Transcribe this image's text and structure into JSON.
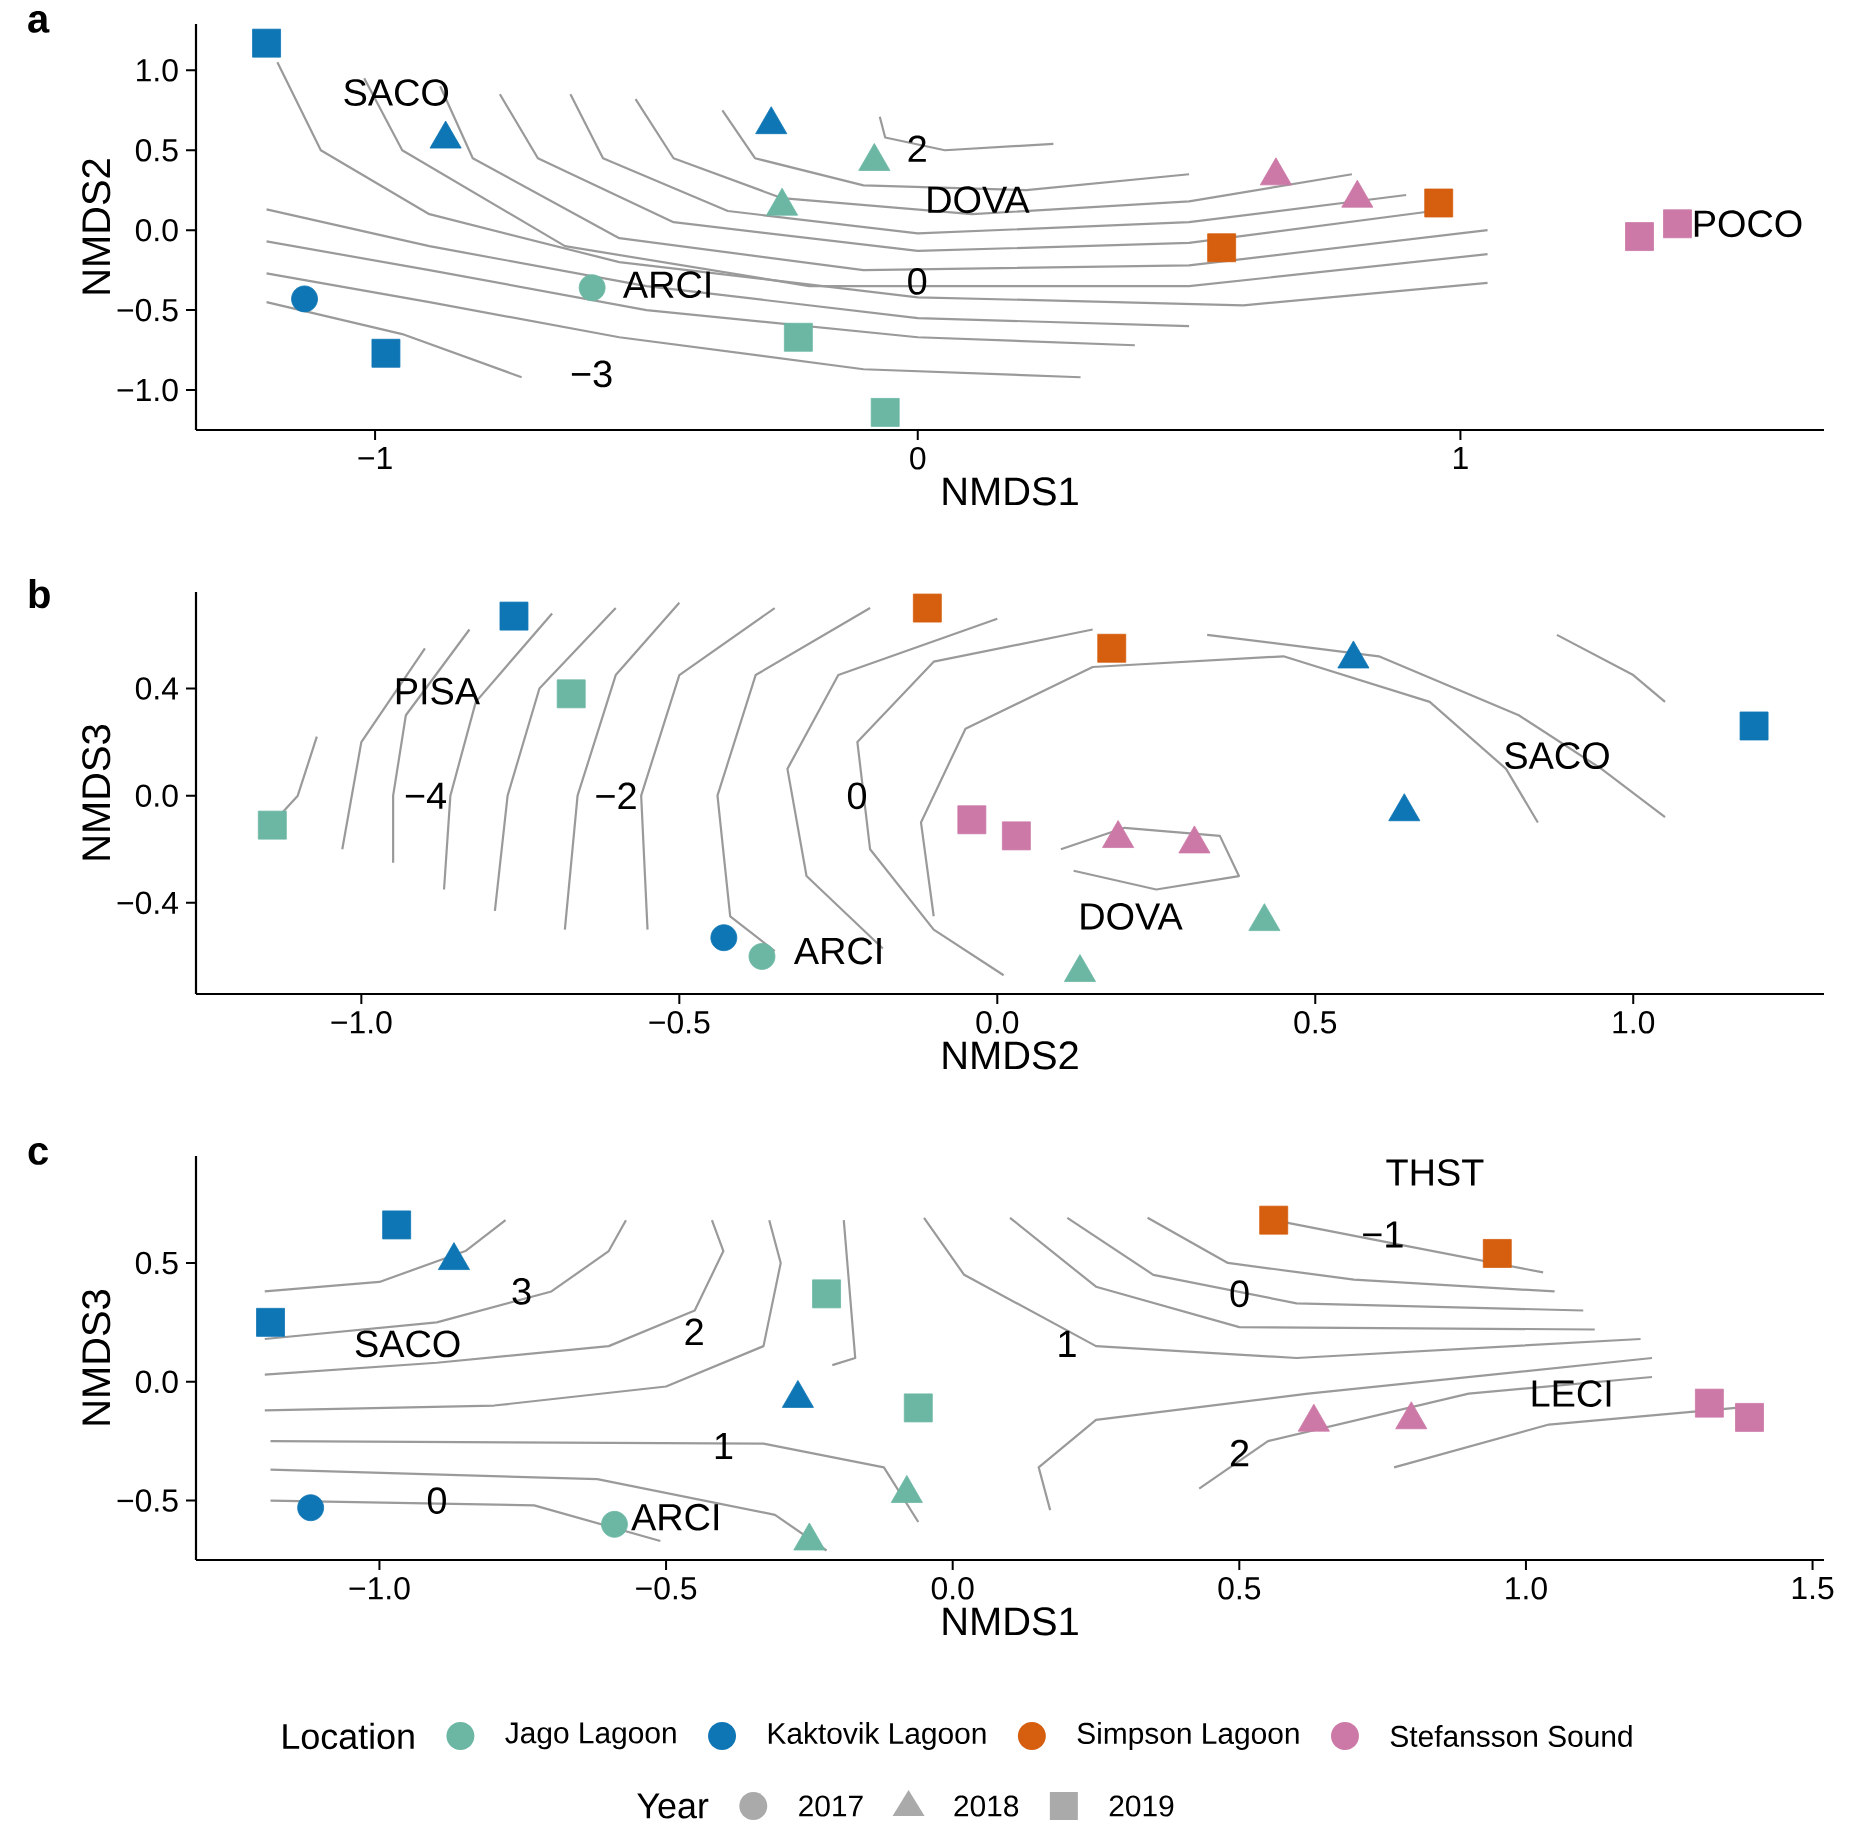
{
  "chart_data": [
    {
      "type": "scatter",
      "title": "a",
      "xlabel": "NMDS1",
      "ylabel": "NMDS2",
      "xlim": [
        -1.33,
        1.67
      ],
      "ylim": [
        -1.25,
        1.29
      ],
      "xticks": [
        {
          "value": -1,
          "label": "−1"
        },
        {
          "value": 0,
          "label": "0"
        },
        {
          "value": 1,
          "label": "1"
        }
      ],
      "yticks": [
        {
          "value": -1,
          "label": "−1.0"
        },
        {
          "value": -0.5,
          "label": "−0.5"
        },
        {
          "value": 0,
          "label": "0.0"
        },
        {
          "value": 0.5,
          "label": "0.5"
        },
        {
          "value": 1,
          "label": "1.0"
        }
      ],
      "annotations": [
        "SACO",
        "DOVA",
        "ARCI",
        "POCO",
        "2",
        "0",
        "−3"
      ],
      "series": [
        {
          "type": "line",
          "color": "#9a9a9a",
          "x": [
            -0.07,
            -0.06,
            0.05,
            0.25
          ],
          "values": [
            0.71,
            0.58,
            0.5,
            0.54
          ]
        },
        {
          "type": "line",
          "color": "#9a9a9a",
          "x": [
            -0.36,
            -0.3,
            -0.1,
            0.2,
            0.5
          ],
          "values": [
            0.75,
            0.45,
            0.28,
            0.25,
            0.35
          ]
        },
        {
          "type": "line",
          "color": "#9a9a9a",
          "x": [
            -0.52,
            -0.45,
            -0.25,
            0.1,
            0.5,
            0.8
          ],
          "values": [
            0.82,
            0.45,
            0.2,
            0.1,
            0.18,
            0.35
          ]
        },
        {
          "type": "line",
          "color": "#9a9a9a",
          "x": [
            -0.64,
            -0.58,
            -0.35,
            0.0,
            0.5,
            0.9
          ],
          "values": [
            0.85,
            0.45,
            0.12,
            -0.02,
            0.05,
            0.22
          ]
        },
        {
          "type": "line",
          "color": "#9a9a9a",
          "x": [
            -0.77,
            -0.7,
            -0.45,
            0.0,
            0.5,
            0.95
          ],
          "values": [
            0.85,
            0.45,
            0.05,
            -0.13,
            -0.08,
            0.12
          ]
        },
        {
          "type": "line",
          "color": "#9a9a9a",
          "x": [
            -0.88,
            -0.82,
            -0.55,
            -0.1,
            0.5,
            1.05
          ],
          "values": [
            0.9,
            0.45,
            -0.05,
            -0.25,
            -0.22,
            0.0
          ]
        },
        {
          "type": "line",
          "color": "#9a9a9a",
          "x": [
            -1.02,
            -0.95,
            -0.65,
            -0.2,
            0.5,
            1.05
          ],
          "values": [
            0.95,
            0.5,
            -0.1,
            -0.35,
            -0.35,
            -0.15
          ]
        },
        {
          "type": "line",
          "color": "#9a9a9a",
          "x": [
            -1.18,
            -1.1,
            -0.9,
            -0.55,
            0.0,
            0.6,
            1.05
          ],
          "values": [
            1.05,
            0.5,
            0.1,
            -0.2,
            -0.42,
            -0.47,
            -0.33
          ]
        },
        {
          "type": "line",
          "color": "#9a9a9a",
          "x": [
            -1.2,
            -0.9,
            -0.5,
            0.0,
            0.5
          ],
          "values": [
            0.13,
            -0.1,
            -0.35,
            -0.55,
            -0.6
          ]
        },
        {
          "type": "line",
          "color": "#9a9a9a",
          "x": [
            -1.2,
            -0.9,
            -0.5,
            0.0,
            0.4
          ],
          "values": [
            -0.07,
            -0.25,
            -0.5,
            -0.67,
            -0.72
          ]
        },
        {
          "type": "line",
          "color": "#9a9a9a",
          "x": [
            -1.2,
            -0.9,
            -0.55,
            -0.1,
            0.3
          ],
          "values": [
            -0.27,
            -0.45,
            -0.67,
            -0.87,
            -0.92
          ]
        },
        {
          "type": "line",
          "color": "#9a9a9a",
          "x": [
            -1.2,
            -0.95,
            -0.73
          ],
          "values": [
            -0.45,
            -0.65,
            -0.92
          ]
        },
        {
          "color": "#6cb7a4",
          "marker": "circle",
          "x": [
            -0.6
          ],
          "values": [
            -0.36
          ]
        },
        {
          "color": "#6cb7a4",
          "marker": "triangle",
          "x": [
            -0.08,
            -0.25
          ],
          "values": [
            0.43,
            0.15
          ]
        },
        {
          "color": "#6cb7a4",
          "marker": "square",
          "x": [
            -0.22,
            -0.06
          ],
          "values": [
            -0.67,
            -1.14
          ]
        },
        {
          "color": "#0f76b5",
          "marker": "circle",
          "x": [
            -1.13
          ],
          "values": [
            -0.43
          ]
        },
        {
          "color": "#0f76b5",
          "marker": "triangle",
          "x": [
            -0.87,
            -0.27
          ],
          "values": [
            0.57,
            0.66
          ]
        },
        {
          "color": "#0f76b5",
          "marker": "square",
          "x": [
            -1.2,
            -0.98
          ],
          "values": [
            1.17,
            -0.77
          ]
        },
        {
          "color": "#d55e0f",
          "marker": "square",
          "x": [
            0.56,
            0.96
          ],
          "values": [
            -0.11,
            0.17
          ]
        },
        {
          "color": "#cc79a7",
          "marker": "triangle",
          "x": [
            0.66,
            0.81
          ],
          "values": [
            0.34,
            0.2
          ]
        },
        {
          "color": "#cc79a7",
          "marker": "square",
          "x": [
            1.33,
            1.4
          ],
          "values": [
            -0.04,
            0.04
          ]
        }
      ]
    },
    {
      "type": "scatter",
      "title": "b",
      "xlabel": "NMDS2",
      "ylabel": "NMDS3",
      "xlim": [
        -1.26,
        1.3
      ],
      "ylim": [
        -0.74,
        0.76
      ],
      "xticks": [
        {
          "value": -1,
          "label": "−1.0"
        },
        {
          "value": -0.5,
          "label": "−0.5"
        },
        {
          "value": 0,
          "label": "0.0"
        },
        {
          "value": 0.5,
          "label": "0.5"
        },
        {
          "value": 1,
          "label": "1.0"
        }
      ],
      "yticks": [
        {
          "value": -0.4,
          "label": "−0.4"
        },
        {
          "value": 0,
          "label": "0.0"
        },
        {
          "value": 0.4,
          "label": "0.4"
        }
      ],
      "annotations": [
        "PISA",
        "SACO",
        "DOVA",
        "ARCI",
        "−4",
        "−2",
        "0"
      ],
      "series": [
        {
          "type": "line",
          "color": "#9a9a9a",
          "x": [
            -1.07,
            -1.1,
            -1.15
          ],
          "values": [
            0.22,
            0.0,
            -0.13
          ]
        },
        {
          "type": "line",
          "color": "#9a9a9a",
          "x": [
            -0.9,
            -1.0,
            -1.03
          ],
          "values": [
            0.55,
            0.2,
            -0.2
          ]
        },
        {
          "type": "line",
          "color": "#9a9a9a",
          "x": [
            -0.83,
            -0.93,
            -0.95,
            -0.95
          ],
          "values": [
            0.62,
            0.3,
            0.0,
            -0.25
          ]
        },
        {
          "type": "line",
          "color": "#9a9a9a",
          "x": [
            -0.7,
            -0.82,
            -0.86,
            -0.87
          ],
          "values": [
            0.68,
            0.35,
            0.0,
            -0.35
          ]
        },
        {
          "type": "line",
          "color": "#9a9a9a",
          "x": [
            -0.6,
            -0.72,
            -0.77,
            -0.79
          ],
          "values": [
            0.7,
            0.4,
            0.0,
            -0.43
          ]
        },
        {
          "type": "line",
          "color": "#9a9a9a",
          "x": [
            -0.5,
            -0.6,
            -0.66,
            -0.68
          ],
          "values": [
            0.72,
            0.45,
            0.0,
            -0.5
          ]
        },
        {
          "type": "line",
          "color": "#9a9a9a",
          "x": [
            -0.35,
            -0.5,
            -0.56,
            -0.55
          ],
          "values": [
            0.7,
            0.45,
            0.0,
            -0.5
          ]
        },
        {
          "type": "line",
          "color": "#9a9a9a",
          "x": [
            -0.2,
            -0.38,
            -0.44,
            -0.42,
            -0.35
          ],
          "values": [
            0.7,
            0.45,
            0.0,
            -0.45,
            -0.58
          ]
        },
        {
          "type": "line",
          "color": "#9a9a9a",
          "x": [
            0.0,
            -0.25,
            -0.33,
            -0.3,
            -0.18
          ],
          "values": [
            0.66,
            0.45,
            0.1,
            -0.3,
            -0.57
          ]
        },
        {
          "type": "line",
          "color": "#9a9a9a",
          "x": [
            0.15,
            -0.1,
            -0.22,
            -0.2,
            -0.1,
            0.01
          ],
          "values": [
            0.62,
            0.5,
            0.2,
            -0.2,
            -0.5,
            -0.67
          ]
        },
        {
          "type": "line",
          "color": "#9a9a9a",
          "x": [
            -0.1,
            -0.12,
            -0.05,
            0.15,
            0.45,
            0.68,
            0.8,
            0.85
          ],
          "values": [
            -0.45,
            -0.1,
            0.25,
            0.48,
            0.52,
            0.35,
            0.1,
            -0.1
          ]
        },
        {
          "type": "line",
          "color": "#9a9a9a",
          "x": [
            0.33,
            0.6,
            0.82,
            0.95,
            1.05
          ],
          "values": [
            0.6,
            0.52,
            0.3,
            0.1,
            -0.08
          ]
        },
        {
          "type": "line",
          "color": "#9a9a9a",
          "x": [
            0.88,
            1.0,
            1.05
          ],
          "values": [
            0.6,
            0.45,
            0.35
          ]
        },
        {
          "type": "line",
          "color": "#9a9a9a",
          "x": [
            0.1,
            0.2,
            0.35,
            0.38,
            0.25,
            0.12
          ],
          "values": [
            -0.2,
            -0.12,
            -0.15,
            -0.3,
            -0.35,
            -0.28
          ]
        },
        {
          "color": "#6cb7a4",
          "marker": "circle",
          "x": [
            -0.37
          ],
          "values": [
            -0.6
          ]
        },
        {
          "color": "#6cb7a4",
          "marker": "triangle",
          "x": [
            0.42,
            0.13
          ],
          "values": [
            -0.47,
            -0.66
          ]
        },
        {
          "color": "#6cb7a4",
          "marker": "square",
          "x": [
            -0.67,
            -1.14
          ],
          "values": [
            0.38,
            -0.11
          ]
        },
        {
          "color": "#0f76b5",
          "marker": "circle",
          "x": [
            -0.43
          ],
          "values": [
            -0.53
          ]
        },
        {
          "color": "#0f76b5",
          "marker": "triangle",
          "x": [
            0.56,
            0.64
          ],
          "values": [
            0.51,
            -0.06
          ]
        },
        {
          "color": "#0f76b5",
          "marker": "square",
          "x": [
            -0.76,
            1.19
          ],
          "values": [
            0.67,
            0.26
          ]
        },
        {
          "color": "#d55e0f",
          "marker": "square",
          "x": [
            -0.11,
            0.18
          ],
          "values": [
            0.7,
            0.55
          ]
        },
        {
          "color": "#cc79a7",
          "marker": "triangle",
          "x": [
            0.19,
            0.31
          ],
          "values": [
            -0.16,
            -0.18
          ]
        },
        {
          "color": "#cc79a7",
          "marker": "square",
          "x": [
            -0.04,
            0.03
          ],
          "values": [
            -0.09,
            -0.15
          ]
        }
      ]
    },
    {
      "type": "scatter",
      "title": "c",
      "xlabel": "NMDS1",
      "ylabel": "NMDS3",
      "xlim": [
        -1.32,
        1.52
      ],
      "ylim": [
        -0.75,
        0.95
      ],
      "xticks": [
        {
          "value": -1,
          "label": "−1.0"
        },
        {
          "value": -0.5,
          "label": "−0.5"
        },
        {
          "value": 0,
          "label": "0.0"
        },
        {
          "value": 0.5,
          "label": "0.5"
        },
        {
          "value": 1,
          "label": "1.0"
        },
        {
          "value": 1.5,
          "label": "1.5"
        }
      ],
      "yticks": [
        {
          "value": -0.5,
          "label": "−0.5"
        },
        {
          "value": 0,
          "label": "0.0"
        },
        {
          "value": 0.5,
          "label": "0.5"
        }
      ],
      "legend": "bottom",
      "legend_title": "Location",
      "annotations": [
        "THST",
        "SACO",
        "LECI",
        "ARCI",
        "3",
        "2",
        "1",
        "1",
        "0",
        "0",
        "−1",
        "2",
        "Year"
      ],
      "series": [
        {
          "type": "line",
          "color": "#9a9a9a",
          "x": [
            -1.2,
            -1.0,
            -0.85,
            -0.78
          ],
          "values": [
            0.38,
            0.42,
            0.55,
            0.68
          ]
        },
        {
          "type": "line",
          "color": "#9a9a9a",
          "x": [
            -1.2,
            -0.9,
            -0.7,
            -0.6,
            -0.57
          ],
          "values": [
            0.18,
            0.25,
            0.38,
            0.55,
            0.68
          ]
        },
        {
          "type": "line",
          "color": "#9a9a9a",
          "x": [
            -1.2,
            -0.9,
            -0.6,
            -0.45,
            -0.4,
            -0.42
          ],
          "values": [
            0.03,
            0.08,
            0.15,
            0.3,
            0.55,
            0.68
          ]
        },
        {
          "type": "line",
          "color": "#9a9a9a",
          "x": [
            -1.2,
            -0.8,
            -0.5,
            -0.33,
            -0.3,
            -0.32
          ],
          "values": [
            -0.12,
            -0.1,
            -0.02,
            0.15,
            0.5,
            0.68
          ]
        },
        {
          "type": "line",
          "color": "#9a9a9a",
          "x": [
            -0.19,
            -0.17,
            -0.21
          ],
          "values": [
            0.68,
            0.1,
            0.07
          ]
        },
        {
          "type": "line",
          "color": "#9a9a9a",
          "x": [
            -1.19,
            -0.33,
            -0.12,
            -0.06
          ],
          "values": [
            -0.25,
            -0.26,
            -0.36,
            -0.59
          ]
        },
        {
          "type": "line",
          "color": "#9a9a9a",
          "x": [
            -1.19,
            -0.62,
            -0.31,
            -0.22
          ],
          "values": [
            -0.37,
            -0.41,
            -0.56,
            -0.71
          ]
        },
        {
          "type": "line",
          "color": "#9a9a9a",
          "x": [
            -1.19,
            -0.73,
            -0.51
          ],
          "values": [
            -0.5,
            -0.52,
            -0.67
          ]
        },
        {
          "type": "line",
          "color": "#9a9a9a",
          "x": [
            0.56,
            0.73,
            1.03
          ],
          "values": [
            0.68,
            0.6,
            0.46
          ]
        },
        {
          "type": "line",
          "color": "#9a9a9a",
          "x": [
            0.34,
            0.48,
            0.7,
            1.05
          ],
          "values": [
            0.69,
            0.5,
            0.43,
            0.38
          ]
        },
        {
          "type": "line",
          "color": "#9a9a9a",
          "x": [
            0.2,
            0.35,
            0.6,
            1.1
          ],
          "values": [
            0.69,
            0.45,
            0.33,
            0.3
          ]
        },
        {
          "type": "line",
          "color": "#9a9a9a",
          "x": [
            0.1,
            0.25,
            0.5,
            1.12
          ],
          "values": [
            0.69,
            0.4,
            0.23,
            0.22
          ]
        },
        {
          "type": "line",
          "color": "#9a9a9a",
          "x": [
            -0.05,
            0.02,
            0.25,
            0.6,
            1.2
          ],
          "values": [
            0.69,
            0.45,
            0.15,
            0.1,
            0.18
          ]
        },
        {
          "type": "line",
          "color": "#9a9a9a",
          "x": [
            0.17,
            0.15,
            0.25,
            0.62,
            1.22
          ],
          "values": [
            -0.54,
            -0.36,
            -0.16,
            -0.05,
            0.1
          ]
        },
        {
          "type": "line",
          "color": "#9a9a9a",
          "x": [
            0.43,
            0.55,
            0.9,
            1.22
          ],
          "values": [
            -0.45,
            -0.25,
            -0.05,
            0.02
          ]
        },
        {
          "type": "line",
          "color": "#9a9a9a",
          "x": [
            0.77,
            1.04,
            1.41
          ],
          "values": [
            -0.36,
            -0.18,
            -0.1
          ]
        },
        {
          "color": "#6cb7a4",
          "marker": "circle",
          "x": [
            -0.59
          ],
          "values": [
            -0.6
          ]
        },
        {
          "color": "#6cb7a4",
          "marker": "triangle",
          "x": [
            -0.08,
            -0.25
          ],
          "values": [
            -0.47,
            -0.67
          ]
        },
        {
          "color": "#6cb7a4",
          "marker": "square",
          "x": [
            -0.22,
            -0.06
          ],
          "values": [
            0.37,
            -0.11
          ]
        },
        {
          "color": "#0f76b5",
          "marker": "circle",
          "x": [
            -1.12
          ],
          "values": [
            -0.53
          ]
        },
        {
          "color": "#0f76b5",
          "marker": "triangle",
          "x": [
            -0.87,
            -0.27
          ],
          "values": [
            0.51,
            -0.07
          ]
        },
        {
          "color": "#0f76b5",
          "marker": "square",
          "x": [
            -0.97,
            -1.19
          ],
          "values": [
            0.66,
            0.25
          ]
        },
        {
          "color": "#d55e0f",
          "marker": "square",
          "x": [
            0.56,
            0.95
          ],
          "values": [
            0.68,
            0.54
          ]
        },
        {
          "color": "#cc79a7",
          "marker": "triangle",
          "x": [
            0.63,
            0.8
          ],
          "values": [
            -0.17,
            -0.16
          ]
        },
        {
          "color": "#cc79a7",
          "marker": "square",
          "x": [
            1.32,
            1.39
          ],
          "values": [
            -0.09,
            -0.15
          ]
        },
        {
          "name": "Jago Lagoon",
          "color": "#6cb7a4",
          "marker": "circle"
        },
        {
          "name": "Kaktovik Lagoon",
          "color": "#0f76b5",
          "marker": "circle"
        },
        {
          "name": "Simpson Lagoon",
          "color": "#d55e0f",
          "marker": "circle"
        },
        {
          "name": "Stefansson Sound",
          "color": "#cc79a7",
          "marker": "circle"
        },
        {
          "name": "2017",
          "color": "#aaaaaa",
          "marker": "circle"
        },
        {
          "name": "2018",
          "color": "#aaaaaa",
          "marker": "triangle"
        },
        {
          "name": "2019",
          "color": "#aaaaaa",
          "marker": "square"
        }
      ]
    }
  ]
}
